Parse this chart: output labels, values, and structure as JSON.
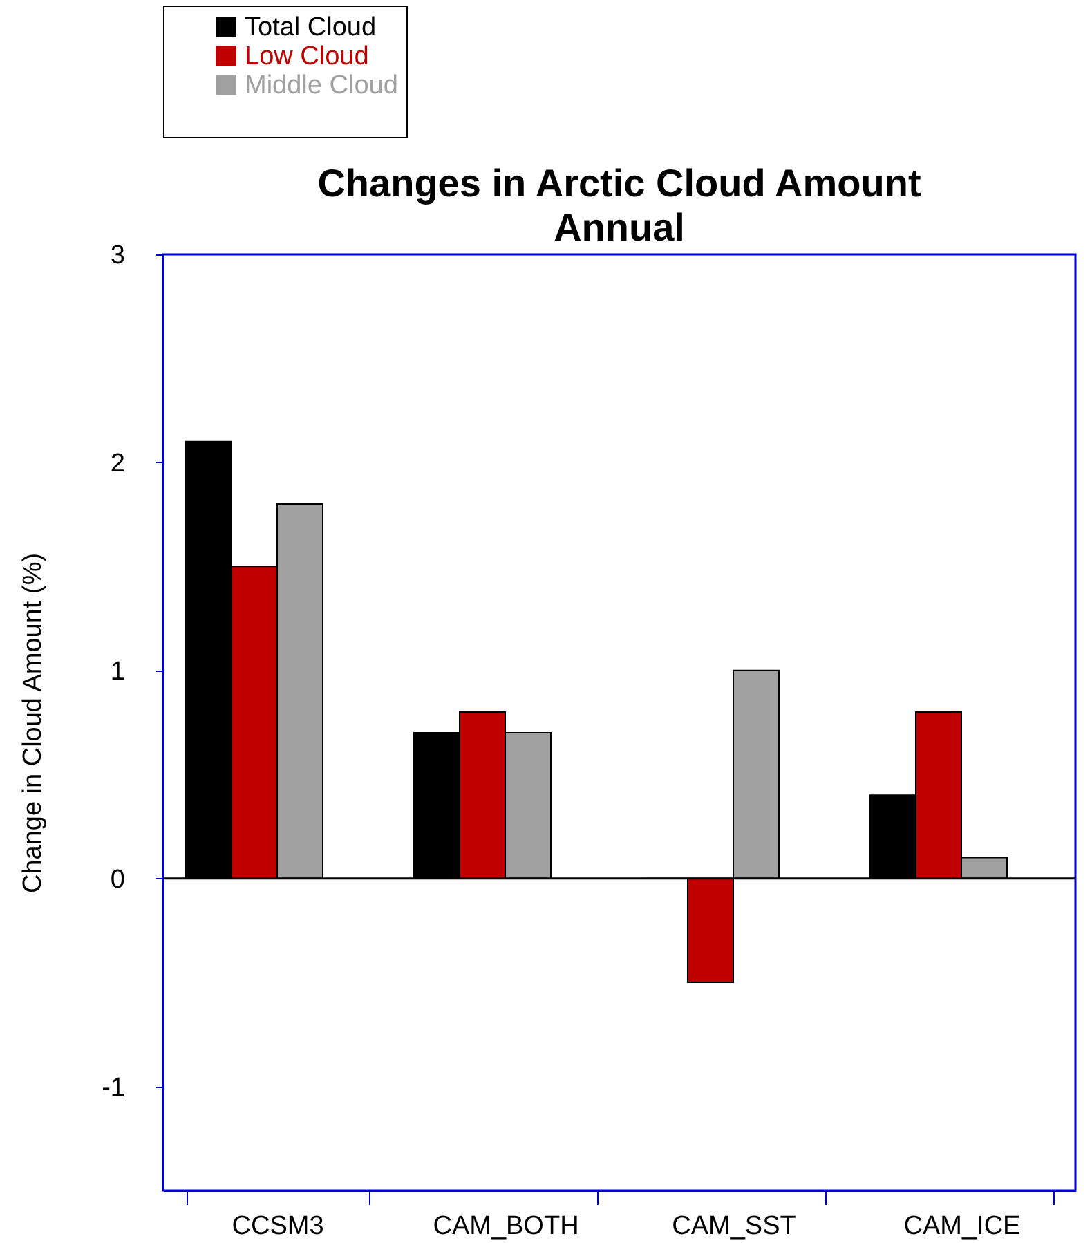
{
  "chart_data": {
    "type": "bar",
    "title": "Changes in Arctic Cloud Amount",
    "subtitle": "Annual",
    "ylabel": "Change in Cloud Amount (%)",
    "categories": [
      "CCSM3",
      "CAM_BOTH",
      "CAM_SST",
      "CAM_ICE"
    ],
    "series": [
      {
        "name": "Total Cloud",
        "color": "#000000",
        "values": [
          2.1,
          0.7,
          0,
          0.4
        ]
      },
      {
        "name": "Low Cloud",
        "color": "#c00000",
        "values": [
          1.5,
          0.8,
          -0.5,
          0.8
        ]
      },
      {
        "name": "Middle Cloud",
        "color": "#a0a0a0",
        "values": [
          1.8,
          0.7,
          1.0,
          0.1
        ]
      },
      {
        "color": "#ffffff",
        "values": [
          null,
          null,
          null,
          null
        ]
      }
    ],
    "ylim": [
      -1.5,
      3
    ],
    "yticks": [
      -1,
      0,
      1,
      2,
      3
    ],
    "grid": false,
    "legend": "top left",
    "ref_lines": [
      {
        "axis": "y",
        "value": 0,
        "color": "#000000"
      }
    ]
  }
}
